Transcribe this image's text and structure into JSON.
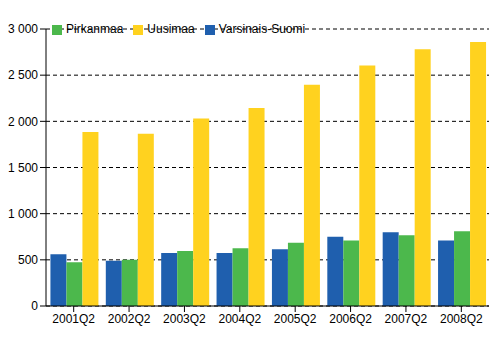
{
  "chart_data": {
    "type": "bar",
    "categories": [
      "2001Q2",
      "2002Q2",
      "2003Q2",
      "2004Q2",
      "2005Q2",
      "2006Q2",
      "2007Q2",
      "2008Q2"
    ],
    "series": [
      {
        "name": "Varsinais-Suomi",
        "color": "#1f5fae",
        "values": [
          560,
          490,
          575,
          575,
          615,
          750,
          800,
          710
        ]
      },
      {
        "name": "Pirkanmaa",
        "color": "#4cb84c",
        "values": [
          475,
          500,
          595,
          625,
          685,
          710,
          765,
          810
        ]
      },
      {
        "name": "Uusimaa",
        "color": "#ffd21f",
        "values": [
          1885,
          1865,
          2030,
          2145,
          2395,
          2605,
          2780,
          2860
        ]
      }
    ],
    "ylim": [
      0,
      3000
    ],
    "yticks": [
      0,
      500,
      {
        "value": 1000,
        "label": "1 000"
      },
      {
        "value": 1500,
        "label": "1 500"
      },
      {
        "value": 2000,
        "label": "2 000"
      },
      {
        "value": 2500,
        "label": "2 500"
      },
      {
        "value": 3000,
        "label": "3 000"
      }
    ],
    "grid": true,
    "legend": "upper left"
  }
}
